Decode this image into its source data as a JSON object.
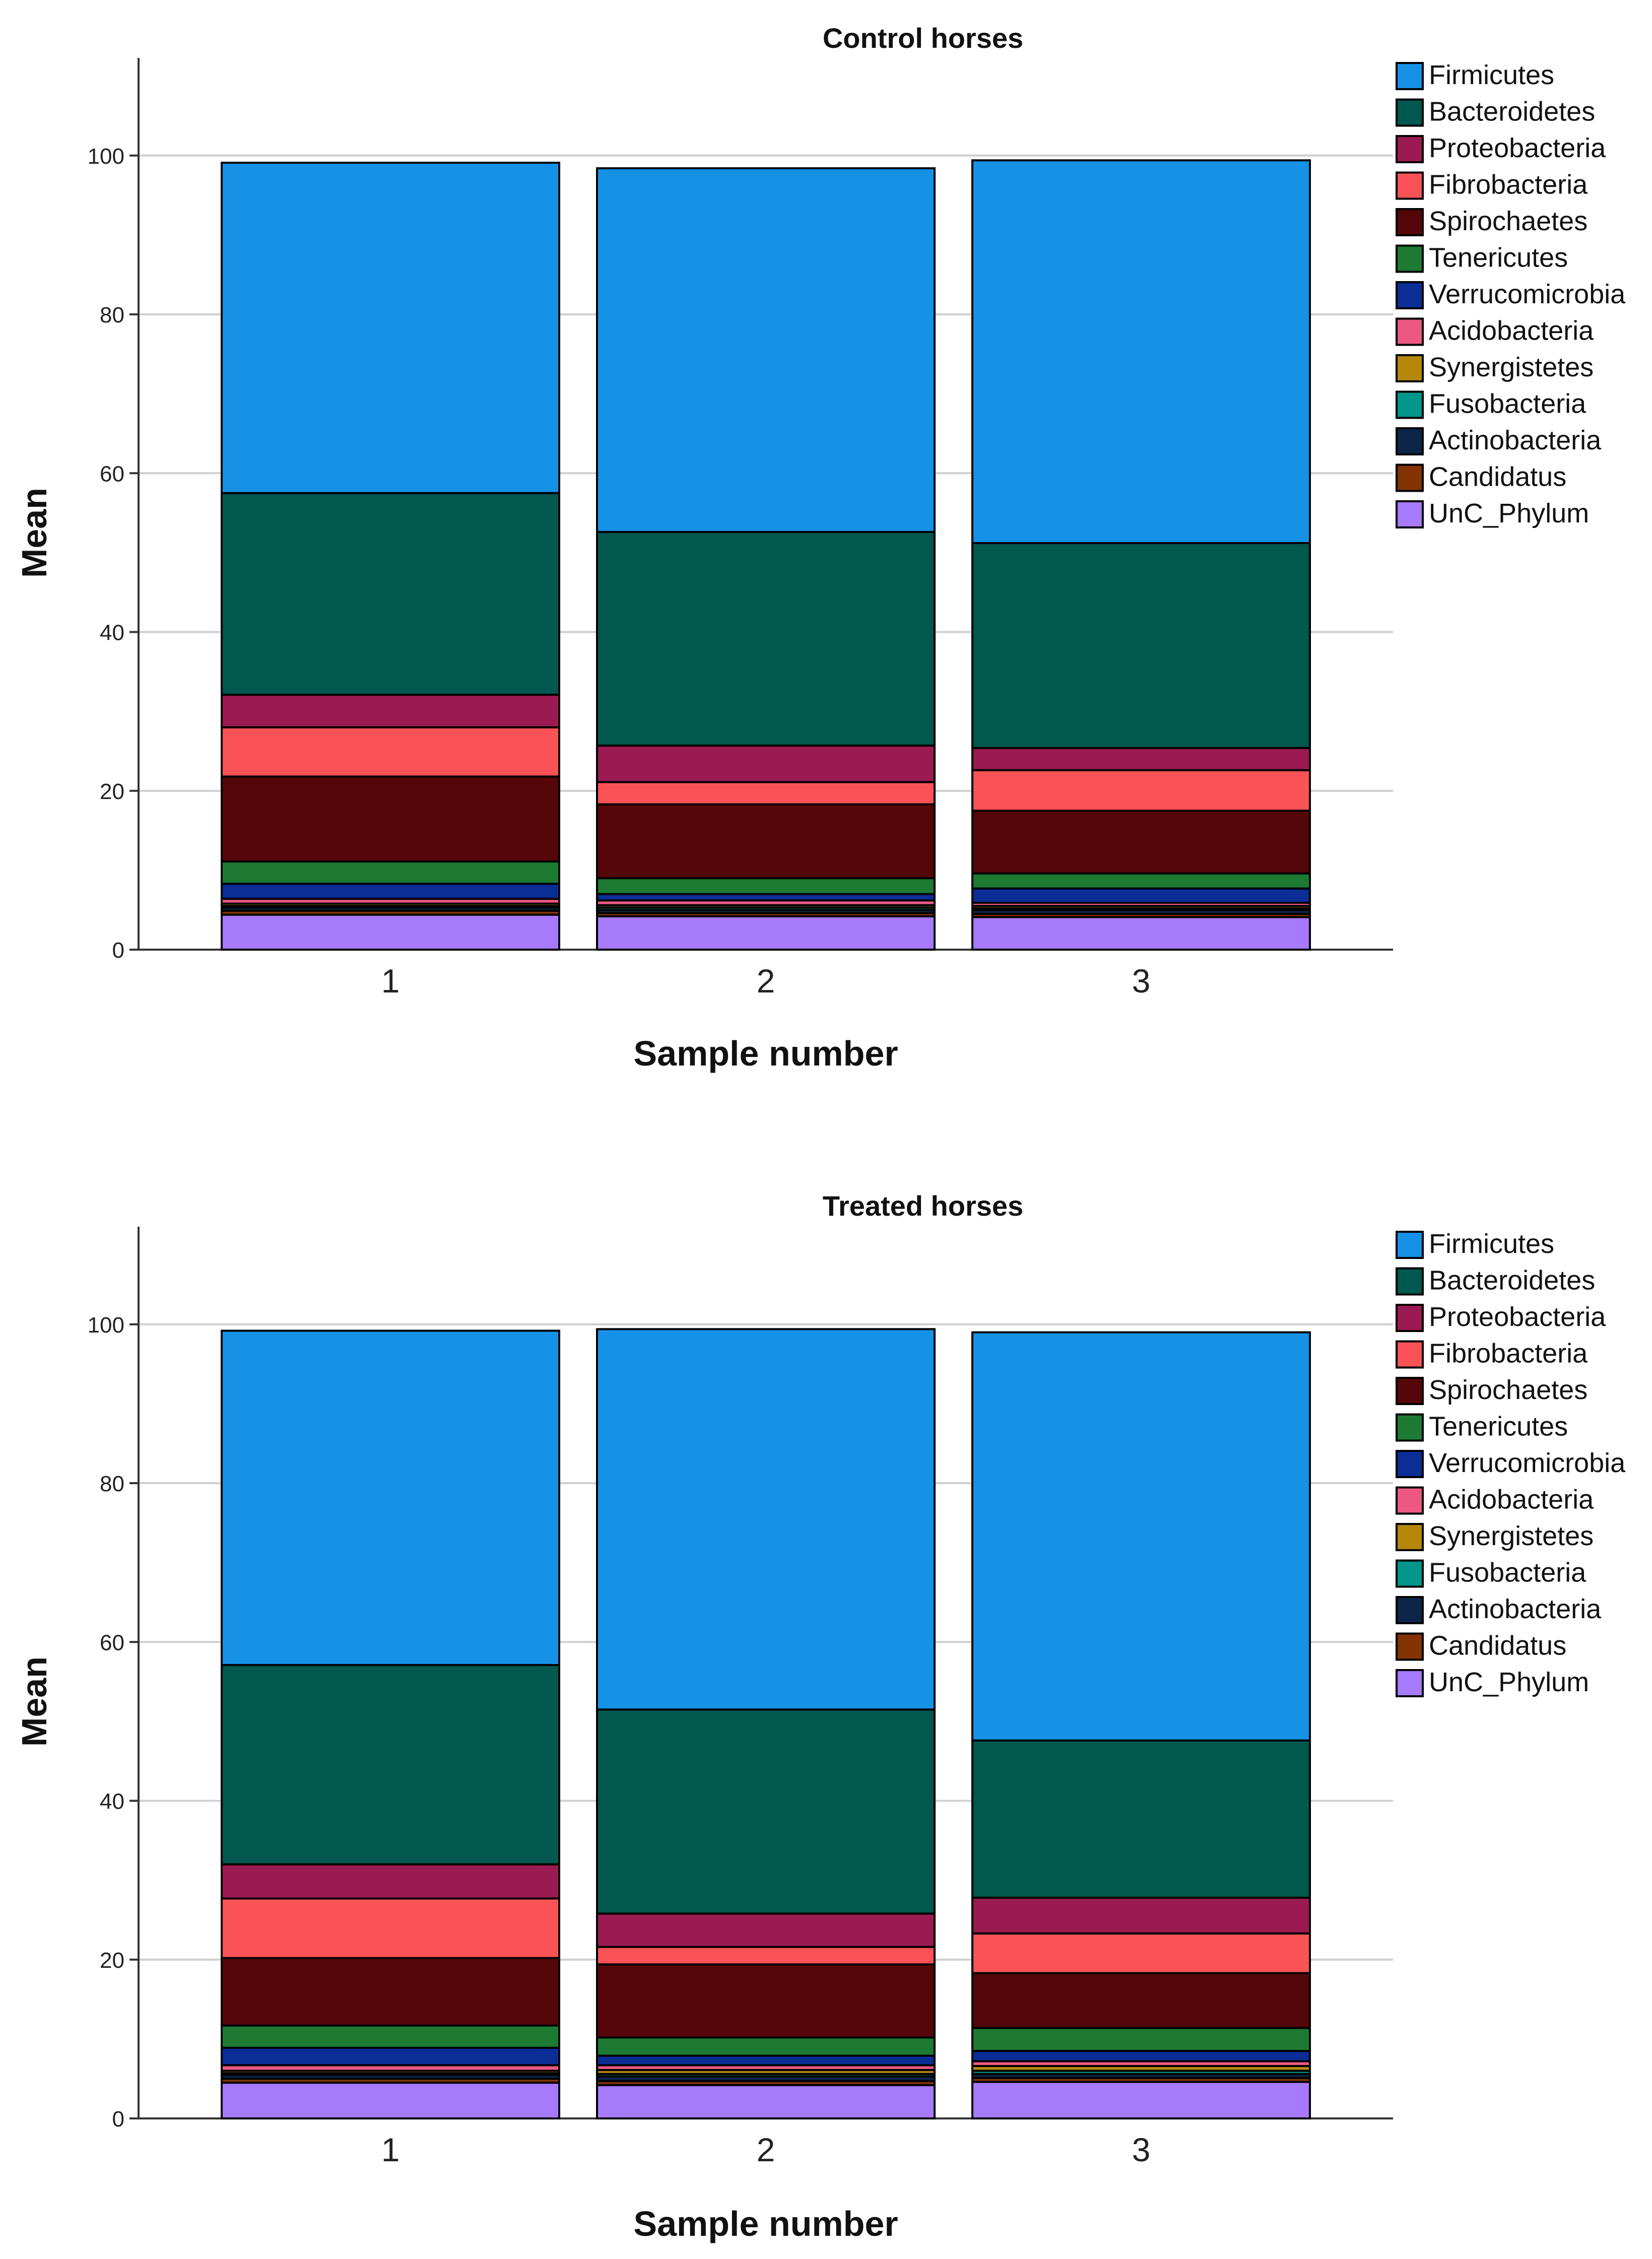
{
  "legend_labels": [
    "Firmicutes",
    "Bacteroidetes",
    "Proteobacteria",
    "Fibrobacteria",
    "Spirochaetes",
    "Tenericutes",
    "Verrucomicrobia",
    "Acidobacteria",
    "Synergistetes",
    "Fusobacteria",
    "Actinobacteria",
    "Candidatus",
    "UnC_Phylum"
  ],
  "colors": {
    "Firmicutes": "#1592e6",
    "Bacteroidetes": "#00584f",
    "Proteobacteria": "#9b1a52",
    "Fibrobacteria": "#fa5256",
    "Spirochaetes": "#550608",
    "Tenericutes": "#1d7a33",
    "Verrucomicrobia": "#0b2d96",
    "Acidobacteria": "#ec5882",
    "Synergistetes": "#b5880c",
    "Fusobacteria": "#00968a",
    "Actinobacteria": "#0b2447",
    "Candidatus": "#843300",
    "UnC_Phylum": "#a779fb"
  },
  "chart_data": [
    {
      "type": "bar",
      "stacked": true,
      "title": "Control horses",
      "xlabel": "Sample number",
      "ylabel": "Mean",
      "categories": [
        "1",
        "2",
        "3"
      ],
      "ylim": [
        0,
        105
      ],
      "yticks": [
        0,
        20,
        40,
        60,
        80,
        100
      ],
      "grid": true,
      "legend_position": "right",
      "series": [
        {
          "name": "UnC_Phylum",
          "values": [
            4.4,
            4.2,
            4.1
          ]
        },
        {
          "name": "Candidatus",
          "values": [
            0.5,
            0.4,
            0.4
          ]
        },
        {
          "name": "Actinobacteria",
          "values": [
            0.4,
            0.4,
            0.5
          ]
        },
        {
          "name": "Fusobacteria",
          "values": [
            0.2,
            0.3,
            0.2
          ]
        },
        {
          "name": "Synergistetes",
          "values": [
            0.3,
            0.3,
            0.3
          ]
        },
        {
          "name": "Acidobacteria",
          "values": [
            0.6,
            0.6,
            0.4
          ]
        },
        {
          "name": "Verrucomicrobia",
          "values": [
            1.9,
            0.8,
            1.8
          ]
        },
        {
          "name": "Tenericutes",
          "values": [
            2.8,
            2.0,
            1.9
          ]
        },
        {
          "name": "Spirochaetes",
          "values": [
            10.7,
            9.3,
            7.9
          ]
        },
        {
          "name": "Fibrobacteria",
          "values": [
            6.2,
            2.8,
            5.1
          ]
        },
        {
          "name": "Proteobacteria",
          "values": [
            4.1,
            4.6,
            2.8
          ]
        },
        {
          "name": "Bacteroidetes",
          "values": [
            25.4,
            26.9,
            25.8
          ]
        },
        {
          "name": "Firmicutes",
          "values": [
            41.6,
            45.8,
            48.2
          ]
        }
      ]
    },
    {
      "type": "bar",
      "stacked": true,
      "title": "Treated horses",
      "xlabel": "Sample  number",
      "ylabel": "Mean",
      "categories": [
        "1",
        "2",
        "3"
      ],
      "ylim": [
        0,
        105
      ],
      "yticks": [
        0,
        20,
        40,
        60,
        80,
        100
      ],
      "grid": true,
      "legend_position": "right",
      "series": [
        {
          "name": "UnC_Phylum",
          "values": [
            4.5,
            4.2,
            4.6
          ]
        },
        {
          "name": "Candidatus",
          "values": [
            0.5,
            0.5,
            0.5
          ]
        },
        {
          "name": "Actinobacteria",
          "values": [
            0.5,
            0.6,
            0.5
          ]
        },
        {
          "name": "Fusobacteria",
          "values": [
            0.2,
            0.3,
            0.4
          ]
        },
        {
          "name": "Synergistetes",
          "values": [
            0.3,
            0.5,
            0.6
          ]
        },
        {
          "name": "Acidobacteria",
          "values": [
            0.7,
            0.6,
            0.6
          ]
        },
        {
          "name": "Verrucomicrobia",
          "values": [
            2.2,
            1.2,
            1.3
          ]
        },
        {
          "name": "Tenericutes",
          "values": [
            2.8,
            2.3,
            2.9
          ]
        },
        {
          "name": "Spirochaetes",
          "values": [
            8.5,
            9.2,
            6.9
          ]
        },
        {
          "name": "Fibrobacteria",
          "values": [
            7.5,
            2.2,
            5.0
          ]
        },
        {
          "name": "Proteobacteria",
          "values": [
            4.3,
            4.2,
            4.5
          ]
        },
        {
          "name": "Bacteroidetes",
          "values": [
            25.1,
            25.7,
            19.8
          ]
        },
        {
          "name": "Firmicutes",
          "values": [
            42.1,
            47.9,
            51.4
          ]
        }
      ]
    }
  ]
}
